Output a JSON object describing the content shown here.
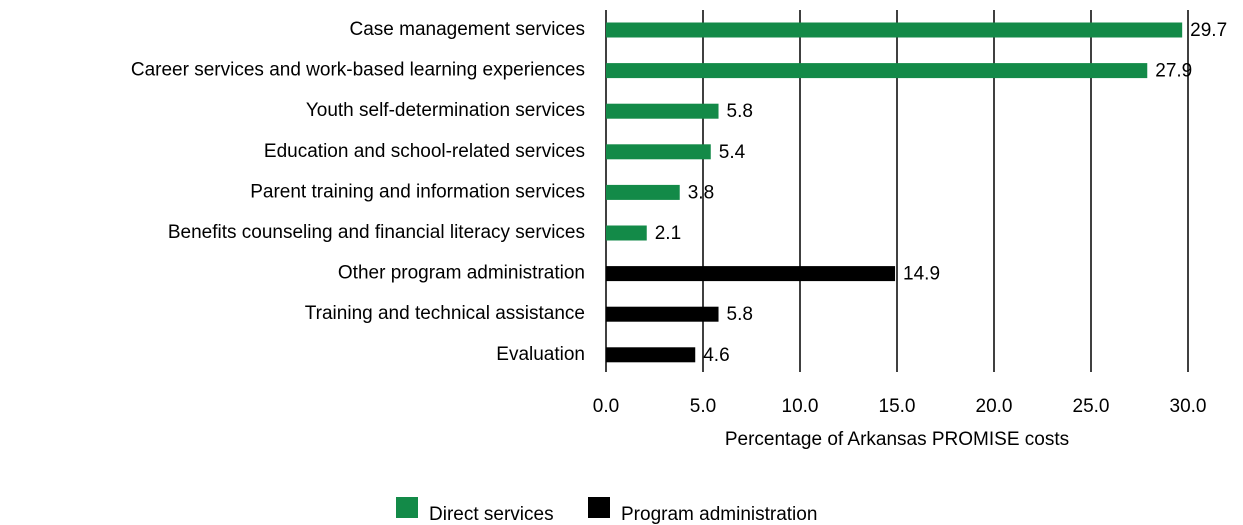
{
  "chart_data": {
    "type": "barh",
    "categories": [
      "Case management services",
      "Career services and work-based learning experiences",
      "Youth self-determination services",
      "Education and school-related services",
      "Parent training and information services",
      "Benefits counseling and financial literacy services",
      "Other program administration",
      "Training and technical assistance",
      "Evaluation"
    ],
    "series": [
      {
        "name": "Direct services",
        "color": "#138a48",
        "values": [
          29.7,
          27.9,
          5.8,
          5.4,
          3.8,
          2.1,
          null,
          null,
          null
        ]
      },
      {
        "name": "Program administration",
        "color": "#000000",
        "values": [
          null,
          null,
          null,
          null,
          null,
          null,
          14.9,
          5.8,
          4.6
        ]
      }
    ],
    "xlabel": "Percentage of Arkansas PROMISE costs",
    "xlim": [
      0,
      30
    ],
    "xticks": [
      {
        "value": 0,
        "label": "0.0"
      },
      {
        "value": 5,
        "label": "5.0"
      },
      {
        "value": 10,
        "label": "10.0"
      },
      {
        "value": 15,
        "label": "15.0"
      },
      {
        "value": 20,
        "label": "20.0"
      },
      {
        "value": 25,
        "label": "25.0"
      },
      {
        "value": 30,
        "label": "30.0"
      }
    ],
    "grid": true,
    "legend": "bottom"
  }
}
